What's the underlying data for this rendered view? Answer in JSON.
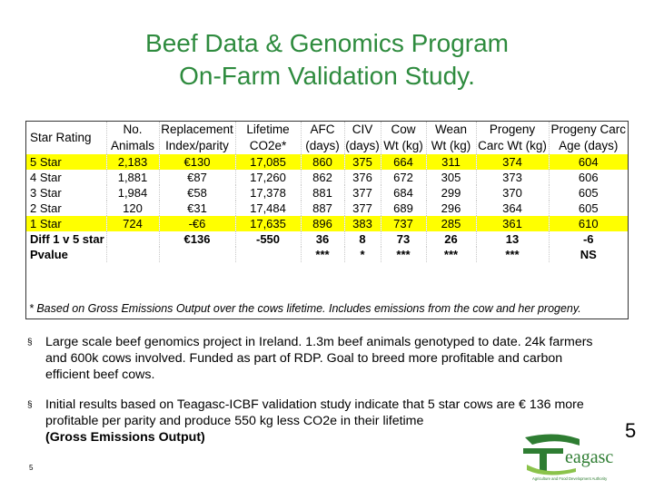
{
  "title": {
    "line1": "Beef Data & Genomics Program",
    "line2": "On-Farm Validation Study."
  },
  "table": {
    "headers": [
      [
        "Star Rating"
      ],
      [
        "No.",
        "Animals"
      ],
      [
        "Replacement",
        "Index/parity"
      ],
      [
        "Lifetime",
        "CO2e*"
      ],
      [
        "AFC",
        "(days)"
      ],
      [
        "CIV",
        "(days)"
      ],
      [
        "Cow",
        "Wt (kg)"
      ],
      [
        "Wean",
        "Wt (kg)"
      ],
      [
        "Progeny",
        "Carc Wt (kg)"
      ],
      [
        "Progeny Carc",
        "Age (days)"
      ]
    ],
    "rows": [
      [
        "5 Star",
        "2,183",
        "€130",
        "17,085",
        "860",
        "375",
        "664",
        "311",
        "374",
        "604"
      ],
      [
        "4 Star",
        "1,881",
        "€87",
        "17,260",
        "862",
        "376",
        "672",
        "305",
        "373",
        "606"
      ],
      [
        "3 Star",
        "1,984",
        "€58",
        "17,378",
        "881",
        "377",
        "684",
        "299",
        "370",
        "605"
      ],
      [
        "2 Star",
        "120",
        "€31",
        "17,484",
        "887",
        "377",
        "689",
        "296",
        "364",
        "605"
      ],
      [
        "1 Star",
        "724",
        "-€6",
        "17,635",
        "896",
        "383",
        "737",
        "285",
        "361",
        "610"
      ],
      [
        "Diff 1 v 5 star",
        "",
        "€136",
        "-550",
        "36",
        "8",
        "73",
        "26",
        "13",
        "-6"
      ],
      [
        "Pvalue",
        "",
        "",
        "",
        "***",
        "*",
        "***",
        "***",
        "***",
        "NS"
      ]
    ],
    "highlight_color": "#ffff00"
  },
  "footnote": "* Based on Gross Emissions Output over the cows lifetime. Includes emissions from the cow and her progeny.",
  "bullets": [
    {
      "text": "Large scale beef genomics project in Ireland. 1.3m beef animals genotyped to date. 24k farmers and 600k cows involved. Funded as part of RDP. Goal to breed more profitable and carbon efficient beef cows.",
      "bold": ""
    },
    {
      "text": "Initial results based on Teagasc-ICBF validation study indicate that 5 star cows are € 136 more profitable per parity and produce 550 kg less CO2e in their lifetime",
      "bold": "(Gross Emissions Output)"
    }
  ],
  "bullet_marker": "§",
  "slide_number": "5",
  "page_number": "5",
  "logo": {
    "text": "eagasc",
    "tagline": "Agriculture and Food Development Authority",
    "colors": {
      "green": "#2e7d32",
      "light_green": "#8bc34a"
    }
  },
  "colors": {
    "title": "#2e8b3e"
  }
}
